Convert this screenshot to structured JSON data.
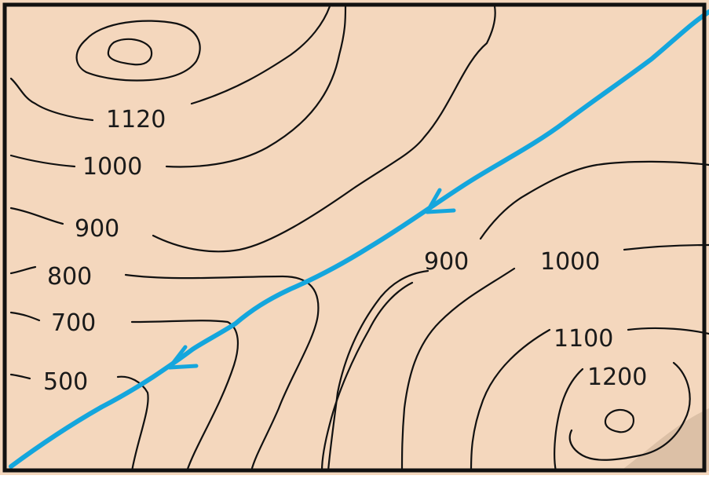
{
  "map": {
    "background_color": "#f4d7bd",
    "border_color": "#111111",
    "contour_color": "#111111",
    "river_color": "#14a6dd",
    "shade_color": "#dcc0a6",
    "river_flow_direction": "southwest",
    "contour_labels": {
      "l1120": "1120",
      "l1000_left": "1000",
      "l900_left": "900",
      "l800": "800",
      "l700": "700",
      "l500": "500",
      "l900_right": "900",
      "l1000_right": "1000",
      "l1100": "1100",
      "l1200": "1200"
    }
  }
}
